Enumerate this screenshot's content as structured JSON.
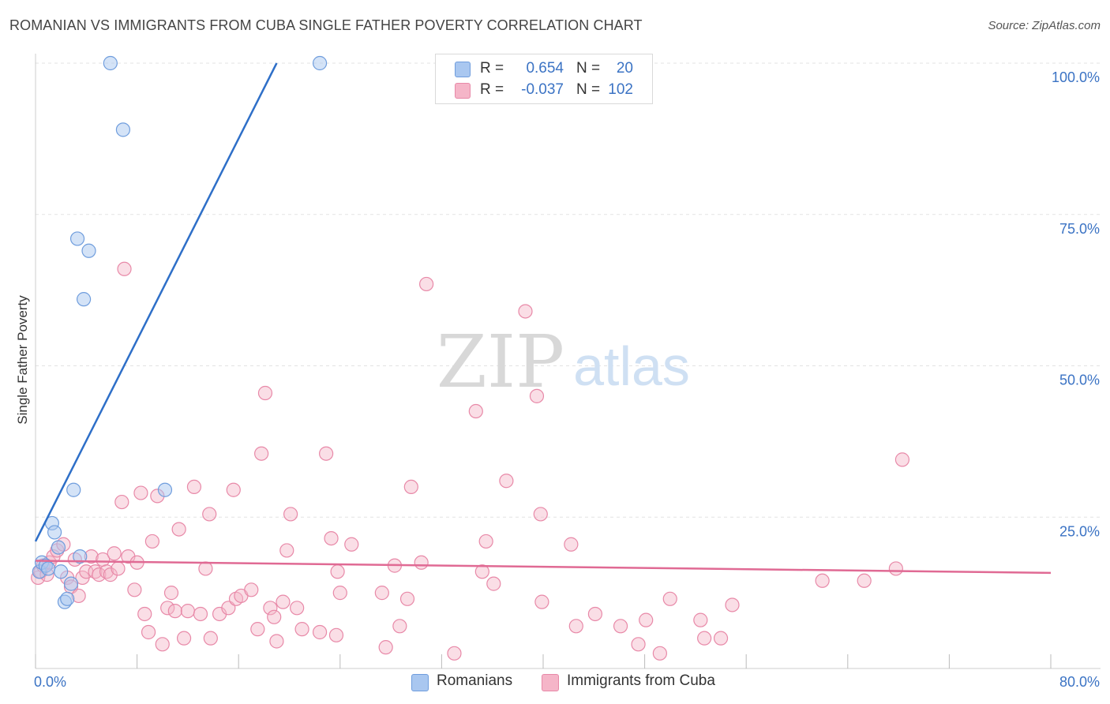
{
  "header": {
    "title": "ROMANIAN VS IMMIGRANTS FROM CUBA SINGLE FATHER POVERTY CORRELATION CHART",
    "source": "Source: ZipAtlas.com"
  },
  "watermark": {
    "zip": "ZIP",
    "atlas": "atlas"
  },
  "legend": {
    "rows": [
      {
        "r_label": "R =",
        "r_value": "0.654",
        "n_label": "N =",
        "n_value": "20",
        "color": "#a9c7f0"
      },
      {
        "r_label": "R =",
        "r_value": "-0.037",
        "n_label": "N =",
        "n_value": "102",
        "color": "#f5b5c8"
      }
    ]
  },
  "bottom_legend": {
    "romanians": "Romanians",
    "cuba": "Immigrants from Cuba"
  },
  "colors": {
    "romanians_fill": "#a9c7f0",
    "romanians_stroke": "#6f9ddd",
    "romanians_line": "#2e6fc8",
    "cuba_fill": "#f5b5c8",
    "cuba_stroke": "#e889a8",
    "cuba_line": "#e06a94",
    "axis_label": "#3b73c4"
  },
  "chart_data": {
    "type": "scatter",
    "title": "ROMANIAN VS IMMIGRANTS FROM CUBA SINGLE FATHER POVERTY CORRELATION CHART",
    "xlabel": "",
    "ylabel": "Single Father Poverty",
    "xlim": [
      0,
      80
    ],
    "ylim": [
      0,
      100
    ],
    "x_tick_labels": [
      "0.0%",
      "80.0%"
    ],
    "y_tick_labels": [
      "25.0%",
      "50.0%",
      "75.0%",
      "100.0%"
    ],
    "y_ticks": [
      25,
      50,
      75,
      100
    ],
    "series": [
      {
        "name": "Romanians",
        "r": 0.654,
        "n": 20,
        "trend": {
          "x": [
            0.0,
            19.0
          ],
          "y": [
            21.0,
            100.0
          ]
        },
        "points": [
          [
            0.3,
            16.0
          ],
          [
            0.5,
            17.5
          ],
          [
            0.8,
            17.0
          ],
          [
            1.0,
            16.5
          ],
          [
            1.3,
            24.0
          ],
          [
            1.5,
            22.5
          ],
          [
            1.8,
            20.0
          ],
          [
            2.0,
            16.0
          ],
          [
            2.3,
            11.0
          ],
          [
            2.5,
            11.5
          ],
          [
            2.8,
            14.0
          ],
          [
            3.0,
            29.5
          ],
          [
            3.3,
            71.0
          ],
          [
            3.5,
            18.5
          ],
          [
            3.8,
            61.0
          ],
          [
            4.2,
            69.0
          ],
          [
            5.9,
            100.0
          ],
          [
            6.9,
            89.0
          ],
          [
            10.2,
            29.5
          ],
          [
            22.4,
            100.0
          ]
        ]
      },
      {
        "name": "Immigrants from Cuba",
        "r": -0.037,
        "n": 102,
        "trend": {
          "x": [
            0.0,
            80.0
          ],
          "y": [
            17.8,
            15.8
          ]
        },
        "points": [
          [
            0.2,
            15.0
          ],
          [
            0.4,
            16.0
          ],
          [
            0.6,
            17.0
          ],
          [
            0.9,
            15.5
          ],
          [
            1.1,
            17.5
          ],
          [
            1.4,
            18.5
          ],
          [
            1.7,
            19.5
          ],
          [
            2.2,
            20.5
          ],
          [
            2.5,
            15.0
          ],
          [
            2.8,
            13.5
          ],
          [
            3.1,
            18.0
          ],
          [
            3.4,
            12.0
          ],
          [
            3.7,
            15.0
          ],
          [
            4.0,
            16.0
          ],
          [
            4.4,
            18.5
          ],
          [
            4.7,
            16.0
          ],
          [
            5.0,
            15.5
          ],
          [
            5.3,
            18.0
          ],
          [
            5.6,
            16.0
          ],
          [
            5.9,
            15.5
          ],
          [
            6.2,
            19.0
          ],
          [
            6.5,
            16.5
          ],
          [
            6.8,
            27.5
          ],
          [
            7.0,
            66.0
          ],
          [
            7.3,
            18.5
          ],
          [
            7.8,
            13.0
          ],
          [
            8.0,
            17.5
          ],
          [
            8.3,
            29.0
          ],
          [
            8.6,
            9.0
          ],
          [
            8.9,
            6.0
          ],
          [
            9.2,
            21.0
          ],
          [
            9.6,
            28.5
          ],
          [
            10.0,
            4.0
          ],
          [
            10.4,
            10.0
          ],
          [
            10.7,
            12.5
          ],
          [
            11.0,
            9.5
          ],
          [
            11.3,
            23.0
          ],
          [
            11.7,
            5.0
          ],
          [
            12.0,
            9.5
          ],
          [
            12.5,
            30.0
          ],
          [
            13.0,
            9.0
          ],
          [
            13.4,
            16.5
          ],
          [
            13.7,
            25.5
          ],
          [
            13.8,
            5.0
          ],
          [
            14.5,
            9.0
          ],
          [
            15.2,
            10.0
          ],
          [
            15.6,
            29.5
          ],
          [
            15.8,
            11.5
          ],
          [
            16.2,
            12.0
          ],
          [
            17.0,
            13.0
          ],
          [
            17.5,
            6.5
          ],
          [
            17.8,
            35.5
          ],
          [
            18.1,
            45.5
          ],
          [
            18.5,
            10.0
          ],
          [
            18.8,
            8.5
          ],
          [
            19.0,
            4.5
          ],
          [
            19.5,
            11.0
          ],
          [
            19.8,
            19.5
          ],
          [
            20.1,
            25.5
          ],
          [
            20.6,
            10.0
          ],
          [
            21.0,
            6.5
          ],
          [
            22.4,
            6.0
          ],
          [
            22.9,
            35.5
          ],
          [
            23.3,
            21.5
          ],
          [
            23.7,
            5.5
          ],
          [
            23.8,
            16.0
          ],
          [
            24.0,
            12.5
          ],
          [
            24.9,
            20.5
          ],
          [
            27.3,
            12.5
          ],
          [
            27.6,
            3.5
          ],
          [
            28.3,
            17.0
          ],
          [
            28.7,
            7.0
          ],
          [
            29.3,
            11.5
          ],
          [
            29.6,
            30.0
          ],
          [
            30.4,
            17.5
          ],
          [
            30.8,
            63.5
          ],
          [
            33.0,
            2.5
          ],
          [
            34.7,
            42.5
          ],
          [
            35.2,
            16.0
          ],
          [
            35.5,
            21.0
          ],
          [
            36.1,
            14.0
          ],
          [
            37.1,
            31.0
          ],
          [
            38.6,
            59.0
          ],
          [
            39.5,
            45.0
          ],
          [
            39.8,
            25.5
          ],
          [
            39.9,
            11.0
          ],
          [
            42.2,
            20.5
          ],
          [
            42.6,
            7.0
          ],
          [
            44.1,
            9.0
          ],
          [
            46.1,
            7.0
          ],
          [
            47.5,
            4.0
          ],
          [
            48.1,
            8.0
          ],
          [
            49.2,
            2.5
          ],
          [
            50.0,
            11.5
          ],
          [
            52.4,
            8.0
          ],
          [
            52.7,
            5.0
          ],
          [
            54.0,
            5.0
          ],
          [
            54.9,
            10.5
          ],
          [
            62.0,
            14.5
          ],
          [
            65.3,
            14.5
          ],
          [
            68.3,
            34.5
          ],
          [
            67.8,
            16.5
          ]
        ]
      }
    ]
  }
}
